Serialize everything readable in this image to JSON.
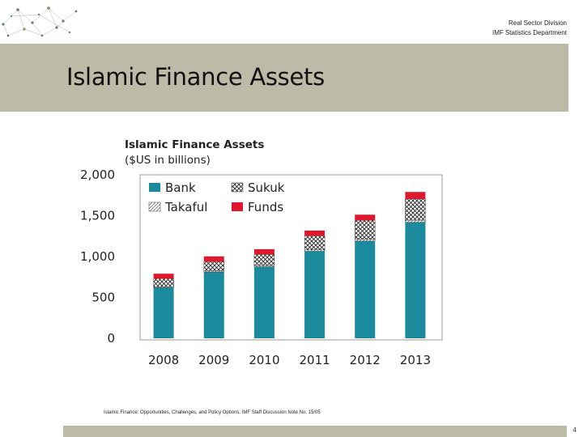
{
  "header": {
    "division": "Real Sector Division",
    "department": "IMF Statistics Department"
  },
  "slide": {
    "title": "Islamic Finance Assets",
    "source": "Islamic Finance: Opportunities, Challenges, and Policy Options. IMF Staff Discussion Note No. 15/05",
    "page_number": "4"
  },
  "colors": {
    "banner": "#bcbba7",
    "bank": "#1a8a9c",
    "takaful": "#ffffff",
    "sukuk": "#ffffff",
    "funds": "#e0182e"
  },
  "chart_data": {
    "type": "bar",
    "stacked": true,
    "title": "Islamic Finance Assets",
    "subtitle": "($US in billions)",
    "categories": [
      "2008",
      "2009",
      "2010",
      "2011",
      "2012",
      "2013"
    ],
    "series": [
      {
        "name": "Bank",
        "values": [
          620,
          810,
          875,
          1065,
          1190,
          1420
        ],
        "color": "#1a8a9c",
        "pattern": "solid"
      },
      {
        "name": "Sukuk",
        "values": [
          100,
          115,
          135,
          170,
          230,
          260
        ],
        "color": "#ffffff",
        "pattern": "crosshatch"
      },
      {
        "name": "Takaful",
        "values": [
          10,
          12,
          15,
          18,
          22,
          25
        ],
        "color": "#ffffff",
        "pattern": "diagonal"
      },
      {
        "name": "Funds",
        "values": [
          60,
          65,
          65,
          65,
          70,
          85
        ],
        "color": "#e0182e",
        "pattern": "solid"
      }
    ],
    "y_ticks": [
      "2,000",
      "1,500",
      "1,000",
      "500",
      "0"
    ],
    "ylim": [
      0,
      2000
    ],
    "grid": false,
    "legend_position": "top-left",
    "legend_order": [
      "Bank",
      "Sukuk",
      "Takaful",
      "Funds"
    ]
  }
}
